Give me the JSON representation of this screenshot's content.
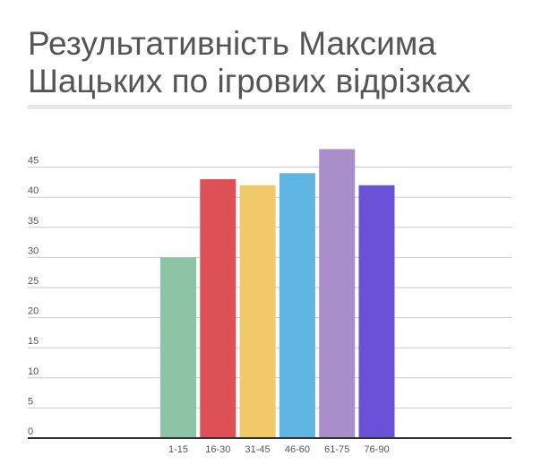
{
  "chart_data": {
    "type": "bar",
    "title": "Результативність Максима Шацьких по ігрових відрізках",
    "categories": [
      "1-15",
      "16-30",
      "31-45",
      "46-60",
      "61-75",
      "76-90"
    ],
    "values": [
      30,
      43,
      42,
      44,
      48,
      42
    ],
    "colors": [
      "#8cc4a5",
      "#dd5056",
      "#f0c96a",
      "#5eb5e2",
      "#a98fca",
      "#6a52d8"
    ],
    "y_ticks": [
      0,
      5,
      10,
      15,
      20,
      25,
      30,
      35,
      40,
      45
    ],
    "ylim": [
      0,
      50
    ],
    "grid": true,
    "legend": "none",
    "xlabel": "",
    "ylabel": ""
  }
}
